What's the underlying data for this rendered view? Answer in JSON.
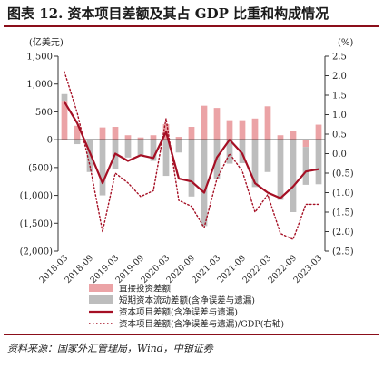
{
  "title": "图表 12. 资本项目差额及其占 GDP 比重和构成情况",
  "source": "资料来源：国家外汇管理局，Wind，中银证券",
  "chart_data": {
    "type": "bar",
    "left_unit": "(亿美元)",
    "right_unit": "(%)",
    "ylim_left": [
      -2000,
      1500
    ],
    "ylim_right": [
      -2.5,
      2.5
    ],
    "left_ticks": [
      1500,
      1000,
      500,
      0,
      -500,
      -1000,
      -1500,
      -2000
    ],
    "left_tick_labels": [
      "1,500",
      "1,000",
      "500",
      "0",
      "(500)",
      "(1,000)",
      "(1,500)",
      "(2,000)"
    ],
    "right_ticks": [
      2.5,
      2.0,
      1.5,
      1.0,
      0.5,
      0.0,
      -0.5,
      -1.0,
      -1.5,
      -2.0,
      -2.5
    ],
    "right_tick_labels": [
      "2.5",
      "2.0",
      "1.5",
      "1.0",
      "0.5",
      "0.0",
      "(0.5)",
      "(1.0)",
      "(1.5)",
      "(2.0)",
      "(2.5)"
    ],
    "categories": [
      "2018-03",
      "2018-06",
      "2018-09",
      "2018-12",
      "2019-03",
      "2019-06",
      "2019-09",
      "2019-12",
      "2020-03",
      "2020-06",
      "2020-09",
      "2020-12",
      "2021-03",
      "2021-06",
      "2021-09",
      "2021-12",
      "2022-03",
      "2022-06",
      "2022-09",
      "2022-12",
      "2023-03"
    ],
    "x_tick_labels": [
      "2018-03",
      "2018-09",
      "2019-03",
      "2019-09",
      "2020-03",
      "2020-09",
      "2021-03",
      "2021-09",
      "2022-03",
      "2022-09",
      "2023-03"
    ],
    "series": [
      {
        "name": "直接投资差额",
        "kind": "bar",
        "color": "#eba3a6",
        "values": [
          700,
          250,
          0,
          220,
          230,
          80,
          40,
          80,
          280,
          50,
          230,
          610,
          570,
          350,
          350,
          380,
          600,
          80,
          150,
          -130,
          270
        ]
      },
      {
        "name": "短期资本流动差额(含净误差与遗漏)",
        "kind": "bar",
        "color": "#bdbdbd",
        "values": [
          120,
          -80,
          -580,
          -1000,
          -530,
          -320,
          -280,
          -380,
          -650,
          -230,
          -1020,
          -1550,
          -700,
          -430,
          -420,
          -850,
          -580,
          -1080,
          -1300,
          -680,
          -800
        ]
      },
      {
        "name": "资本项目差额(含净误差与遗漏)",
        "kind": "line",
        "color": "#a50f24",
        "values": [
          680,
          300,
          -230,
          -780,
          -250,
          -380,
          -280,
          -330,
          140,
          -700,
          -750,
          -950,
          -320,
          0,
          -250,
          -780,
          -950,
          -1050,
          -840,
          -570,
          -530
        ]
      },
      {
        "name": "资本项目差额(含净误差与遗漏)/GDP(右轴)",
        "kind": "line-dotted",
        "color": "#a50f24",
        "values": [
          2.1,
          1.05,
          -0.3,
          -2.0,
          -0.5,
          -0.75,
          -1.1,
          -0.95,
          0.9,
          -1.2,
          -1.35,
          -1.9,
          -0.65,
          0.0,
          -0.45,
          -1.5,
          -1.05,
          -2.05,
          -2.2,
          -1.3,
          -1.3
        ]
      }
    ]
  }
}
